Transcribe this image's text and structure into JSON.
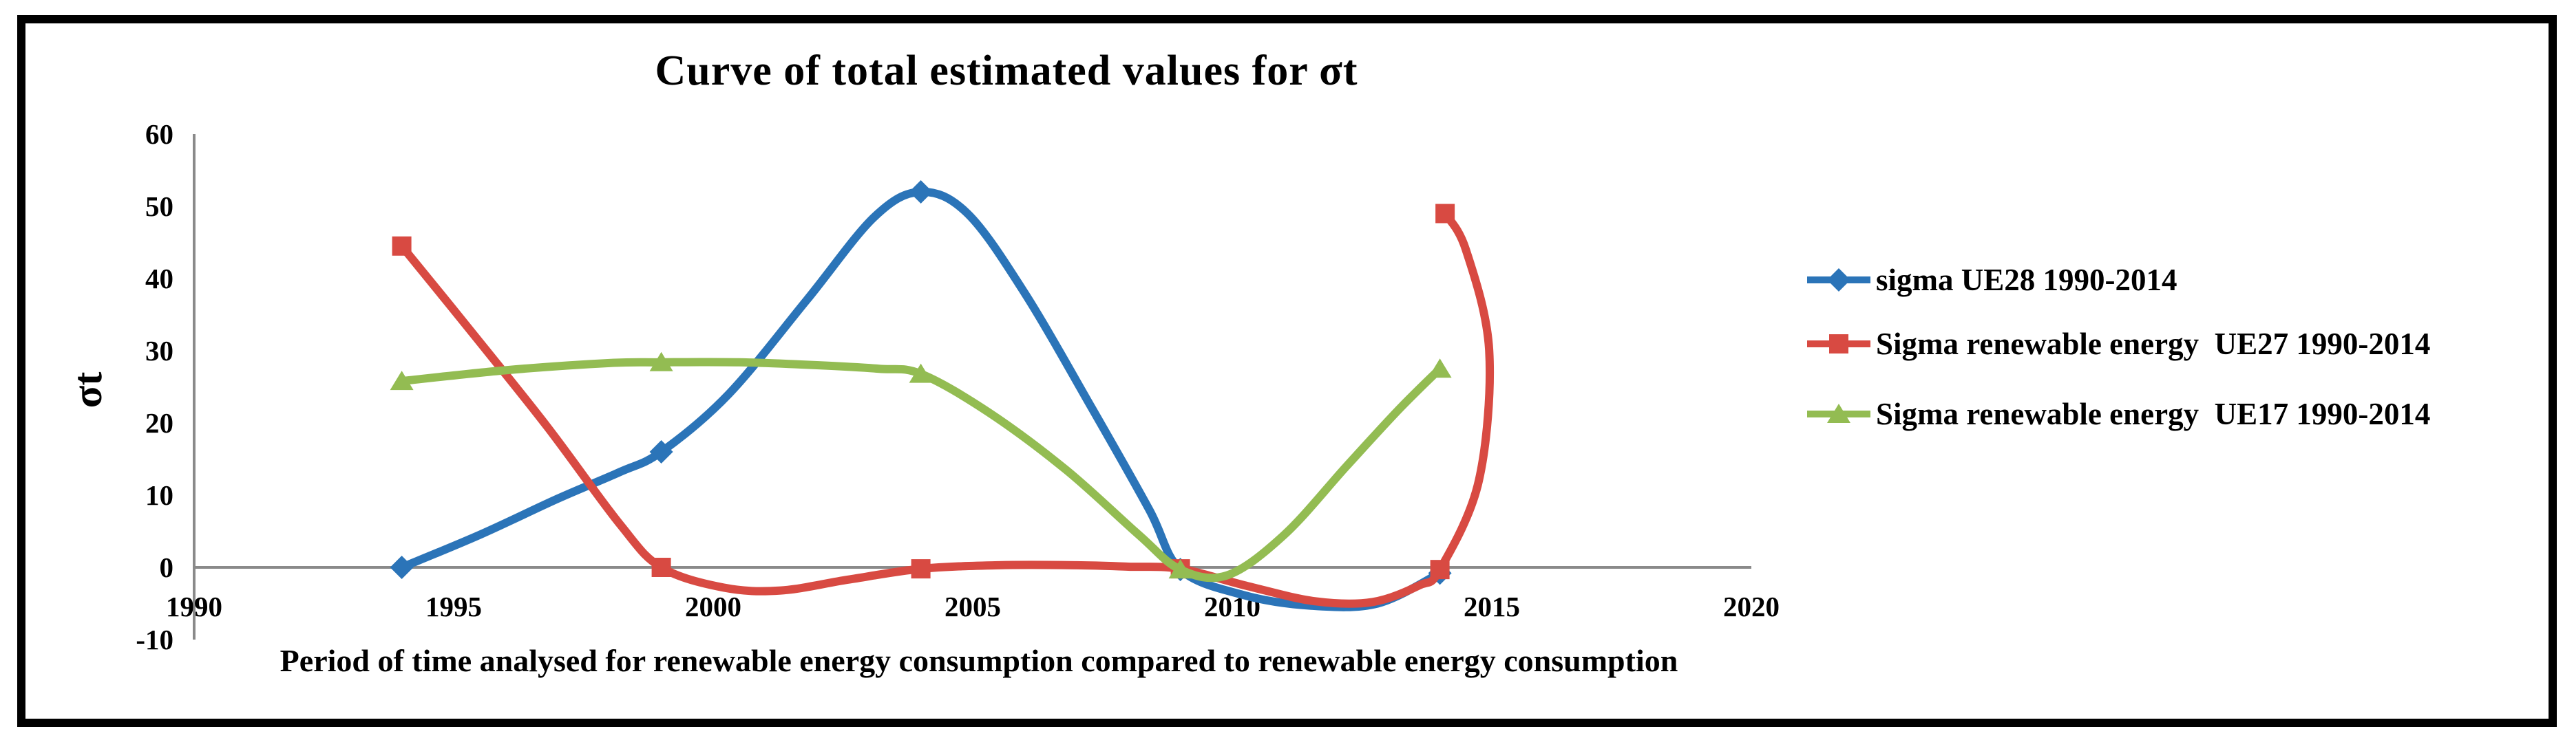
{
  "title": "Curve of total estimated values for σt",
  "y_axis": {
    "label": "σt",
    "ticks": [
      60,
      50,
      40,
      30,
      20,
      10,
      0,
      -10
    ],
    "min": -10,
    "max": 60
  },
  "x_axis": {
    "label": "Period of time analysed for renewable energy consumption compared to renewable energy consumption",
    "ticks": [
      1990,
      1995,
      2000,
      2005,
      2010,
      2015,
      2020
    ],
    "min": 1990,
    "max": 2020
  },
  "colors": {
    "axis": "#8a8a8a",
    "text": "#000000",
    "blue": "#2B74B8",
    "red": "#D84A42",
    "green": "#93BC52"
  },
  "legend": {
    "position": "right",
    "items": [
      {
        "label": "sigma UE28 1990-2014",
        "marker": "diamond",
        "color": "#2B74B8"
      },
      {
        "label": "Sigma renewable energy  UE27 1990-2014",
        "marker": "square",
        "color": "#D84A42"
      },
      {
        "label": "Sigma renewable energy  UE17 1990-2014",
        "marker": "triangle",
        "color": "#93BC52"
      }
    ]
  },
  "chart_data": {
    "type": "line",
    "title": "Curve of total estimated values for σt",
    "xlabel": "Period of time analysed for renewable energy consumption compared to renewable energy consumption",
    "ylabel": "σt",
    "xlim": [
      1990,
      2020
    ],
    "ylim": [
      -10,
      60
    ],
    "grid": false,
    "legend_position": "right",
    "x_years": [
      1994,
      1999,
      2004,
      2009,
      2014
    ],
    "series": [
      {
        "name": "sigma UE28 1990-2014",
        "color": "#2B74B8",
        "marker": "diamond",
        "points": [
          [
            1994,
            0
          ],
          [
            1999,
            16
          ],
          [
            2004,
            52
          ],
          [
            2009,
            -0.3
          ],
          [
            2014,
            -0.8
          ]
        ],
        "curve_points": [
          [
            1994,
            0
          ],
          [
            1995.5,
            4.5
          ],
          [
            1997,
            9.5
          ],
          [
            1998.2,
            13.2
          ],
          [
            1999,
            16
          ],
          [
            2000.3,
            24
          ],
          [
            2001.8,
            37
          ],
          [
            2003.1,
            48.5
          ],
          [
            2004,
            52
          ],
          [
            2004.9,
            49
          ],
          [
            2006,
            38
          ],
          [
            2007.3,
            22
          ],
          [
            2008.4,
            8
          ],
          [
            2009,
            -0.3
          ],
          [
            2010.2,
            -3.8
          ],
          [
            2011.5,
            -5.3
          ],
          [
            2012.8,
            -5
          ],
          [
            2014,
            -0.8
          ]
        ]
      },
      {
        "name": "Sigma renewable energy  UE27 1990-2014",
        "color": "#D84A42",
        "marker": "square",
        "points": [
          [
            1994,
            44.5
          ],
          [
            1999,
            0
          ],
          [
            2004,
            -0.2
          ],
          [
            2009,
            -0.2
          ],
          [
            2014,
            -0.3
          ],
          [
            2014.1,
            49
          ]
        ],
        "curve_points": [
          [
            1994,
            44.5
          ],
          [
            1995.3,
            33
          ],
          [
            1996.8,
            19.5
          ],
          [
            1998.2,
            6
          ],
          [
            1999,
            0
          ],
          [
            2000.2,
            -2.8
          ],
          [
            2001.3,
            -3.2
          ],
          [
            2002.6,
            -1.7
          ],
          [
            2004,
            -0.2
          ],
          [
            2005.5,
            0.3
          ],
          [
            2007,
            0.3
          ],
          [
            2008,
            0.1
          ],
          [
            2009,
            -0.2
          ],
          [
            2010.3,
            -2.6
          ],
          [
            2011.6,
            -4.7
          ],
          [
            2012.7,
            -4.8
          ],
          [
            2013.6,
            -2.5
          ],
          [
            2014,
            -0.3
          ],
          [
            2014.75,
            12
          ],
          [
            2014.95,
            30
          ],
          [
            2014.5,
            44
          ],
          [
            2014.1,
            49
          ]
        ]
      },
      {
        "name": "Sigma renewable energy  UE17 1990-2014",
        "color": "#93BC52",
        "marker": "triangle",
        "points": [
          [
            1994,
            25.8
          ],
          [
            1999,
            28.4
          ],
          [
            2004,
            26.8
          ],
          [
            2009,
            -0.3
          ],
          [
            2014,
            27.5
          ]
        ],
        "curve_points": [
          [
            1994,
            25.8
          ],
          [
            1996,
            27.3
          ],
          [
            1998,
            28.3
          ],
          [
            1999,
            28.4
          ],
          [
            2000.5,
            28.4
          ],
          [
            2002,
            28
          ],
          [
            2003.2,
            27.5
          ],
          [
            2004,
            26.8
          ],
          [
            2005.3,
            21.5
          ],
          [
            2006.8,
            13.5
          ],
          [
            2008.2,
            4.5
          ],
          [
            2009,
            -0.3
          ],
          [
            2009.9,
            -1.1
          ],
          [
            2011,
            4.5
          ],
          [
            2012.2,
            14
          ],
          [
            2013.2,
            21.8
          ],
          [
            2014,
            27.5
          ]
        ]
      }
    ]
  }
}
